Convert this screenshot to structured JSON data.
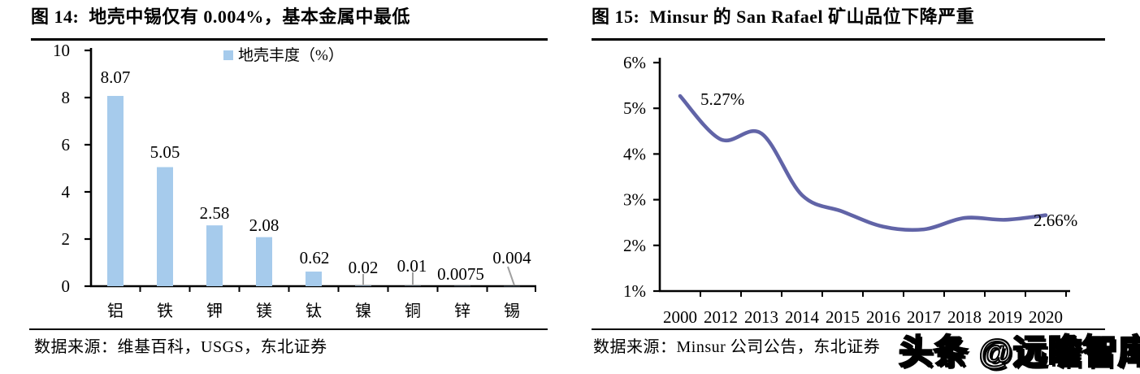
{
  "watermark": "头条 @远瞻智库",
  "figures": [
    {
      "title": "图 14:  地壳中锡仅有 0.004%，基本金属中最低",
      "source": "数据来源：维基百科，USGS，东北证券",
      "chart_data": {
        "type": "bar",
        "legend": "地壳丰度（%）",
        "categories": [
          "铝",
          "铁",
          "钾",
          "镁",
          "钛",
          "镍",
          "铜",
          "锌",
          "锡"
        ],
        "values": [
          8.07,
          5.05,
          2.58,
          2.08,
          0.62,
          0.02,
          0.01,
          0.0075,
          0.004
        ],
        "value_labels": [
          "8.07",
          "5.05",
          "2.58",
          "2.08",
          "0.62",
          "0.02",
          "0.01",
          "0.0075",
          "0.004"
        ],
        "yticks": [
          "0",
          "2",
          "4",
          "6",
          "8",
          "10"
        ],
        "ylim": [
          0,
          10
        ],
        "grid": false,
        "legend_position": "top",
        "bar_color": "#a6cbec",
        "axis_color": "#000000",
        "callout_color": "#a0a0a0"
      }
    },
    {
      "title": "图 15:  Minsur 的 San Rafael 矿山品位下降严重",
      "source": "数据来源：Minsur 公司公告，东北证券",
      "chart_data": {
        "type": "line",
        "x": [
          "2000",
          "2012",
          "2013",
          "2014",
          "2015",
          "2016",
          "2017",
          "2018",
          "2019",
          "2020"
        ],
        "values": [
          5.27,
          4.32,
          4.45,
          3.1,
          2.74,
          2.41,
          2.35,
          2.6,
          2.56,
          2.66
        ],
        "yticks": [
          "1%",
          "2%",
          "3%",
          "4%",
          "5%",
          "6%"
        ],
        "ylim": [
          1,
          6
        ],
        "grid": false,
        "annotations": [
          {
            "text": "5.27%",
            "point": "first"
          },
          {
            "text": "2.66%",
            "point": "last"
          }
        ],
        "line_color": "#6164a7",
        "axis_color": "#000000"
      }
    }
  ]
}
